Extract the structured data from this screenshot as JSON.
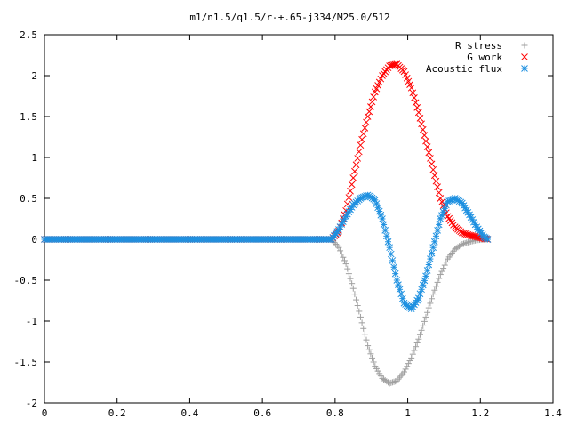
{
  "chart_data": {
    "type": "scatter",
    "title": "m1/n1.5/q1.5/r-+.65-j334/M25.0/512",
    "xlabel": "",
    "ylabel": "",
    "xlim": [
      0,
      1.4
    ],
    "ylim": [
      -2,
      2.5
    ],
    "grid": false,
    "legend_position": "top-right",
    "xticks": [
      "0",
      "0.2",
      "0.4",
      "0.6",
      "0.8",
      "1",
      "1.2",
      "1.4"
    ],
    "yticks": [
      "2.5",
      "2",
      "1.5",
      "1",
      "0.5",
      "0",
      "-0.5",
      "-1",
      "-1.5",
      "-2"
    ],
    "series": [
      {
        "name": "R stress",
        "marker": "plus",
        "color": "#a0a0a0",
        "x": [
          0.79,
          0.81,
          0.83,
          0.85,
          0.87,
          0.89,
          0.91,
          0.93,
          0.95,
          0.97,
          0.99,
          1.01,
          1.03,
          1.05,
          1.07,
          1.09,
          1.11,
          1.13,
          1.15,
          1.17,
          1.19,
          1.21,
          1.22
        ],
        "y": [
          0.0,
          -0.1,
          -0.3,
          -0.6,
          -0.95,
          -1.3,
          -1.55,
          -1.7,
          -1.76,
          -1.73,
          -1.62,
          -1.45,
          -1.22,
          -0.95,
          -0.67,
          -0.43,
          -0.24,
          -0.12,
          -0.06,
          -0.03,
          -0.01,
          0.0,
          0.0
        ]
      },
      {
        "name": "G work",
        "marker": "cross",
        "color": "#ff0000",
        "x": [
          0.79,
          0.81,
          0.83,
          0.85,
          0.87,
          0.89,
          0.91,
          0.93,
          0.95,
          0.97,
          0.99,
          1.01,
          1.03,
          1.05,
          1.07,
          1.09,
          1.11,
          1.13,
          1.15,
          1.17,
          1.19,
          1.21,
          1.22
        ],
        "y": [
          0.0,
          0.1,
          0.35,
          0.75,
          1.15,
          1.5,
          1.8,
          2.0,
          2.12,
          2.14,
          2.05,
          1.85,
          1.55,
          1.2,
          0.85,
          0.5,
          0.28,
          0.15,
          0.08,
          0.05,
          0.03,
          0.01,
          0.0
        ]
      },
      {
        "name": "Acoustic flux",
        "marker": "star",
        "color": "#1e90e0",
        "x": [
          0.79,
          0.81,
          0.83,
          0.85,
          0.87,
          0.89,
          0.91,
          0.93,
          0.95,
          0.97,
          0.99,
          1.01,
          1.03,
          1.05,
          1.07,
          1.09,
          1.11,
          1.13,
          1.15,
          1.17,
          1.19,
          1.21,
          1.22
        ],
        "y": [
          0.0,
          0.12,
          0.28,
          0.42,
          0.5,
          0.54,
          0.48,
          0.25,
          -0.1,
          -0.5,
          -0.78,
          -0.85,
          -0.72,
          -0.45,
          -0.1,
          0.25,
          0.46,
          0.5,
          0.44,
          0.3,
          0.15,
          0.03,
          0.0
        ]
      }
    ]
  }
}
